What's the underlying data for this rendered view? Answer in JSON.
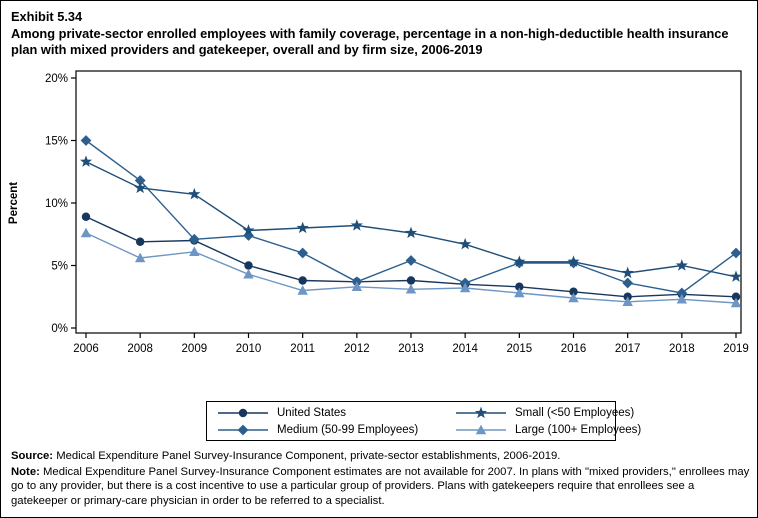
{
  "header": {
    "exhibit": "Exhibit 5.34",
    "title": "Among private-sector enrolled employees with family coverage, percentage in a non-high-deductible health insurance plan with mixed providers and gatekeeper, overall and by firm size, 2006-2019"
  },
  "chart_data": {
    "type": "line",
    "title": "",
    "xlabel": "",
    "ylabel": "Percent",
    "ylim": [
      0,
      20
    ],
    "yticks": [
      0,
      5,
      10,
      15,
      20
    ],
    "ytick_labels": [
      "0%",
      "5%",
      "10%",
      "15%",
      "20%"
    ],
    "grid": false,
    "legend_position": "bottom-box",
    "categories": [
      "2006",
      "2008",
      "2009",
      "2010",
      "2011",
      "2012",
      "2013",
      "2014",
      "2015",
      "2016",
      "2017",
      "2018",
      "2019"
    ],
    "series": [
      {
        "name": "United States",
        "marker": "circle",
        "color": "#17375E",
        "values": [
          8.9,
          6.9,
          7.0,
          5.0,
          3.8,
          3.7,
          3.8,
          3.5,
          3.3,
          2.9,
          2.5,
          2.7,
          2.5
        ]
      },
      {
        "name": "Medium (50-99 Employees)",
        "marker": "diamond",
        "color": "#2C5F8E",
        "values": [
          15.0,
          11.8,
          7.1,
          7.4,
          6.0,
          3.7,
          5.4,
          3.6,
          5.2,
          5.2,
          3.6,
          2.8,
          6.0
        ]
      },
      {
        "name": "Small (<50 Employees)",
        "marker": "star",
        "color": "#1F4E79",
        "values": [
          13.3,
          11.2,
          10.7,
          7.8,
          8.0,
          8.2,
          7.6,
          6.7,
          5.3,
          5.3,
          4.4,
          5.0,
          4.1
        ]
      },
      {
        "name": "Large (100+ Employees)",
        "marker": "triangle",
        "color": "#6E96C4",
        "values": [
          7.6,
          5.6,
          6.1,
          4.3,
          3.0,
          3.3,
          3.1,
          3.2,
          2.8,
          2.4,
          2.1,
          2.3,
          2.0
        ]
      }
    ]
  },
  "legend": {
    "order": [
      0,
      2,
      1,
      3
    ]
  },
  "footer": {
    "source_label": "Source:",
    "source_text": " Medical Expenditure Panel Survey-Insurance Component, private-sector establishments, 2006-2019.",
    "note_label": "Note:",
    "note_text": " Medical Expenditure Panel Survey-Insurance Component estimates are not available for 2007. In plans with \"mixed providers,\" enrollees may go to any provider, but there is a cost incentive to use a particular group of providers. Plans with gatekeepers require that enrollees see a gatekeeper or primary-care physician in order to be referred to a specialist."
  }
}
